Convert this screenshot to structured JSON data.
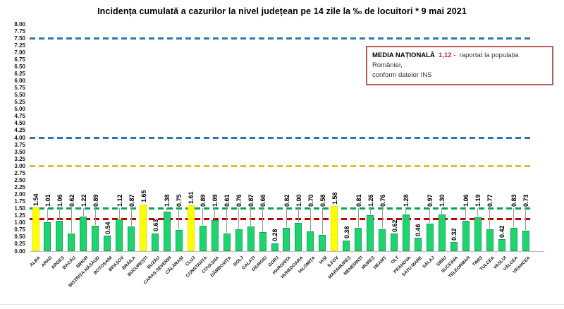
{
  "title": "Incidența cumulată a cazurilor la nivel județean pe 14 zile la ‰ de locuitori *  9 mai 2021",
  "legend_box": {
    "label": "MEDIA NAȚIONALĂ",
    "value": "1,12 -",
    "value_color": "#d42a2a",
    "text_line1": "raportat la populația României,",
    "text_line2": "conform datelor INS"
  },
  "chart_data": {
    "type": "bar",
    "title": "Incidența cumulată a cazurilor la nivel județean pe 14 zile la ‰ de locuitori *  9 mai 2021",
    "xlabel": "",
    "ylabel": "",
    "ylim": [
      0,
      8
    ],
    "ytick_step": 0.25,
    "grid": false,
    "legend_position": "top-right",
    "categories": [
      "ALBA",
      "ARAD",
      "ARGEȘ",
      "BACĂU",
      "BIHOR",
      "BISTRIȚA-NĂSĂUD",
      "BOTOȘANI",
      "BRAȘOV",
      "BRĂILA",
      "BUCUREȘTI",
      "BUZĂU",
      "CARAȘ-SEVERIN",
      "CĂLĂRAȘI",
      "CLUJ",
      "CONSTANȚA",
      "COVASNA",
      "DÂMBOVIȚA",
      "DOLJ",
      "GALAȚI",
      "GIURGIU",
      "GORJ",
      "HARGHITA",
      "HUNEDOARA",
      "IALOMIȚA",
      "IAȘI",
      "ILFOV",
      "MARAMUREȘ",
      "MEHEDINȚI",
      "MUREȘ",
      "NEAMȚ",
      "OLT",
      "PRAHOVA",
      "SATU MARE",
      "SĂLAJ",
      "SIBIU",
      "SUCEAVA",
      "TELEORMAN",
      "TIMIȘ",
      "TULCEA",
      "VASLUI",
      "VÂLCEA",
      "VRANCEA"
    ],
    "values": [
      1.54,
      1.01,
      1.06,
      0.62,
      1.22,
      0.89,
      0.54,
      1.12,
      0.87,
      1.65,
      0.63,
      1.38,
      0.75,
      1.61,
      0.89,
      1.09,
      0.61,
      0.76,
      0.87,
      0.66,
      0.28,
      0.82,
      1.0,
      0.7,
      0.58,
      1.58,
      0.38,
      0.81,
      1.26,
      0.76,
      0.62,
      1.28,
      0.46,
      0.97,
      1.3,
      0.32,
      1.06,
      1.19,
      0.77,
      0.42,
      0.83,
      0.73
    ],
    "bar_color": "#1fd36e",
    "highlight_color": "#ffff00",
    "highlighted_categories": [
      "ALBA",
      "BUCUREȘTI",
      "CLUJ",
      "ILFOV"
    ],
    "low_label_categories": [
      "BOTOȘANI",
      "BUZĂU",
      "GORJ",
      "MARAMUREȘ",
      "OLT",
      "SATU MARE",
      "SUCEAVA",
      "VASLUI"
    ],
    "reference_lines": [
      {
        "name": "threshold-7-50",
        "value": 7.5,
        "color": "#2e75b6"
      },
      {
        "name": "threshold-4-00",
        "value": 4.0,
        "color": "#2e75b6"
      },
      {
        "name": "threshold-3-00",
        "value": 3.0,
        "color": "#ddbe3a"
      },
      {
        "name": "threshold-1-50",
        "value": 1.5,
        "color": "#00a651"
      },
      {
        "name": "national-average-1-12",
        "value": 1.12,
        "color": "#c00000"
      }
    ],
    "national_average": "1,12"
  }
}
